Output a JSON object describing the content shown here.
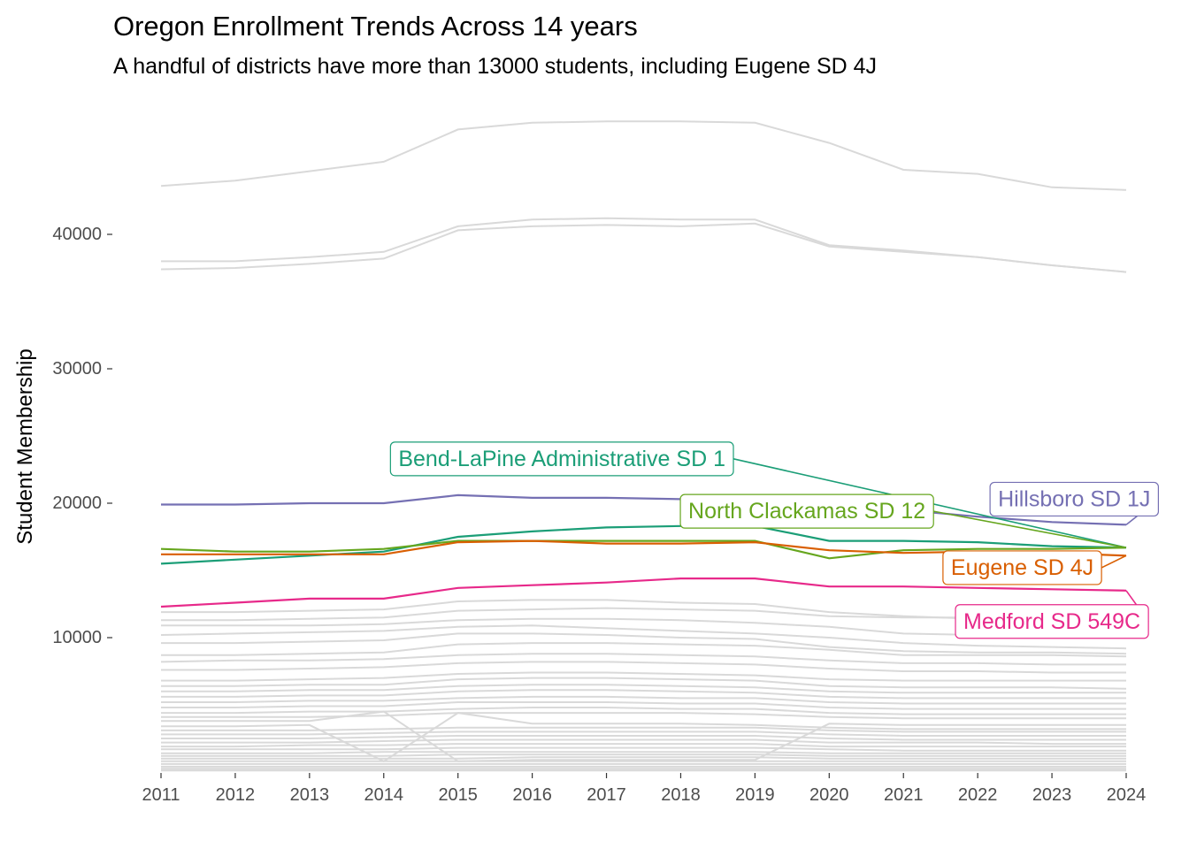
{
  "chart_data": {
    "type": "line",
    "title": "Oregon Enrollment Trends Across 14 years",
    "subtitle": "A handful of districts have more than 13000 students, including Eugene SD 4J",
    "xlabel": "",
    "ylabel": "Student Membership",
    "x": [
      2011,
      2012,
      2013,
      2014,
      2015,
      2016,
      2017,
      2018,
      2019,
      2020,
      2021,
      2022,
      2023,
      2024
    ],
    "xlim": [
      2011,
      2024
    ],
    "ylim": [
      0,
      46500
    ],
    "yticks": [
      10000,
      20000,
      30000,
      40000
    ],
    "grid": false,
    "legend": "none (direct labels)",
    "background_color": "#cccccc",
    "highlighted_series": [
      {
        "name": "Hillsboro SD 1J",
        "color": "#7570b3",
        "values": [
          19900,
          19900,
          20000,
          20000,
          20600,
          20400,
          20400,
          20300,
          20200,
          19700,
          19500,
          19000,
          18600,
          18400
        ],
        "label_year": 2023.3,
        "label_value": 20300
      },
      {
        "name": "Bend-LaPine Administrative SD 1",
        "color": "#1b9e77",
        "values": [
          15500,
          15800,
          16100,
          16400,
          17500,
          17900,
          18200,
          18300,
          18300,
          17200,
          17200,
          17100,
          16800,
          16700
        ],
        "label_year": 2016.4,
        "label_value": 23300
      },
      {
        "name": "North Clackamas SD 12",
        "color": "#66a61e",
        "values": [
          16600,
          16400,
          16400,
          16600,
          17200,
          17200,
          17200,
          17200,
          17200,
          15900,
          16500,
          16600,
          16600,
          16700
        ],
        "label_year": 2019.7,
        "label_value": 19400
      },
      {
        "name": "Eugene SD 4J",
        "color": "#d95f02",
        "values": [
          16200,
          16200,
          16200,
          16200,
          17100,
          17200,
          17000,
          17000,
          17100,
          16500,
          16300,
          16400,
          16300,
          16100
        ],
        "label_year": 2022.6,
        "label_value": 15200
      },
      {
        "name": "Medford SD 549C",
        "color": "#e7298a",
        "values": [
          12300,
          12600,
          12900,
          12900,
          13700,
          13900,
          14100,
          14400,
          14400,
          13800,
          13800,
          13700,
          13600,
          13500
        ],
        "label_year": 2023.0,
        "label_value": 11200
      }
    ],
    "background_series": [
      [
        43600,
        44000,
        44700,
        45400,
        47800,
        48300,
        48400,
        48400,
        48300,
        46800,
        44800,
        44500,
        43500,
        43300
      ],
      [
        38000,
        38000,
        38300,
        38700,
        40600,
        41100,
        41200,
        41100,
        41100,
        39200,
        38800,
        38300,
        37700,
        37200
      ],
      [
        37400,
        37500,
        37800,
        38200,
        40300,
        40600,
        40700,
        40600,
        40800,
        39100,
        38700,
        38300,
        37700,
        37200
      ],
      [
        11900,
        11900,
        12000,
        12100,
        12700,
        12800,
        12800,
        12600,
        12500,
        11900,
        11600,
        11400,
        11300,
        11300
      ],
      [
        11300,
        11300,
        11400,
        11500,
        12000,
        12100,
        12200,
        12100,
        12000,
        11600,
        11500,
        11500,
        11400,
        11300
      ],
      [
        10900,
        10900,
        10900,
        11000,
        11300,
        11400,
        11400,
        11300,
        11100,
        10800,
        10300,
        10200,
        10200,
        10200
      ],
      [
        10200,
        10300,
        10400,
        10500,
        10800,
        10900,
        10700,
        10500,
        10300,
        10000,
        9600,
        9400,
        9300,
        9200
      ],
      [
        9600,
        9600,
        9700,
        9800,
        10300,
        10300,
        10200,
        10000,
        9900,
        9300,
        9000,
        8900,
        8900,
        8800
      ],
      [
        8700,
        8700,
        8800,
        8900,
        9500,
        9600,
        9600,
        9500,
        9400,
        9100,
        8700,
        8700,
        8700,
        8600
      ],
      [
        8200,
        8300,
        8300,
        8400,
        8700,
        8800,
        8800,
        8700,
        8600,
        8300,
        8100,
        8100,
        8000,
        8000
      ],
      [
        7600,
        7600,
        7700,
        7800,
        8100,
        8200,
        8200,
        8100,
        8000,
        7700,
        7500,
        7500,
        7400,
        7400
      ],
      [
        6800,
        6800,
        6900,
        7000,
        7300,
        7400,
        7400,
        7300,
        7200,
        6900,
        6800,
        6800,
        6800,
        6800
      ],
      [
        6400,
        6400,
        6500,
        6500,
        6900,
        7000,
        7000,
        6900,
        6800,
        6400,
        6300,
        6300,
        6300,
        6200
      ],
      [
        6000,
        6000,
        6100,
        6100,
        6400,
        6500,
        6500,
        6400,
        6300,
        6000,
        5900,
        5900,
        5900,
        5900
      ],
      [
        5600,
        5600,
        5700,
        5700,
        6000,
        6100,
        6100,
        6000,
        5900,
        5600,
        5500,
        5500,
        5500,
        5500
      ],
      [
        5200,
        5200,
        5300,
        5300,
        5500,
        5600,
        5600,
        5500,
        5500,
        5200,
        5100,
        5100,
        5100,
        5100
      ],
      [
        4800,
        4800,
        4900,
        4900,
        5200,
        5200,
        5200,
        5100,
        5100,
        4800,
        4700,
        4700,
        4700,
        4700
      ],
      [
        4400,
        4400,
        4500,
        4500,
        4700,
        4800,
        4800,
        4700,
        4700,
        4400,
        4300,
        4300,
        4300,
        4300
      ],
      [
        4100,
        4100,
        4100,
        4200,
        4400,
        4400,
        4400,
        4400,
        4300,
        4100,
        4000,
        4000,
        4000,
        4000
      ],
      [
        3800,
        3800,
        3800,
        4500,
        800,
        900,
        900,
        900,
        900,
        3600,
        3500,
        3500,
        3500,
        3500
      ],
      [
        3400,
        3400,
        3500,
        800,
        4400,
        3600,
        3600,
        3600,
        3500,
        3300,
        3200,
        3200,
        3200,
        3200
      ],
      [
        3100,
        3100,
        3100,
        3200,
        3300,
        3300,
        3300,
        3300,
        3300,
        3100,
        3000,
        3000,
        3000,
        3000
      ],
      [
        2800,
        2800,
        2800,
        2900,
        3000,
        3000,
        3000,
        3000,
        3000,
        2800,
        2700,
        2700,
        2700,
        2700
      ],
      [
        2500,
        2500,
        2500,
        2600,
        2700,
        2700,
        2700,
        2700,
        2700,
        2500,
        2400,
        2400,
        2400,
        2400
      ],
      [
        2200,
        2200,
        2200,
        2300,
        2400,
        2400,
        2400,
        2400,
        2400,
        2200,
        2200,
        2200,
        2100,
        2100
      ],
      [
        1900,
        1900,
        2000,
        2000,
        2100,
        2100,
        2100,
        2100,
        2100,
        1900,
        1900,
        1900,
        1900,
        1900
      ],
      [
        1700,
        1700,
        1700,
        1700,
        1800,
        1800,
        1800,
        1800,
        1800,
        1700,
        1600,
        1600,
        1600,
        1600
      ],
      [
        1400,
        1400,
        1400,
        1500,
        1500,
        1500,
        1500,
        1500,
        1500,
        1400,
        1400,
        1400,
        1400,
        1400
      ],
      [
        1200,
        1200,
        1200,
        1200,
        1300,
        1300,
        1300,
        1300,
        1300,
        1200,
        1200,
        1200,
        1200,
        1200
      ],
      [
        1000,
        1000,
        1000,
        1000,
        1000,
        1100,
        1100,
        1100,
        1100,
        1000,
        1000,
        1000,
        1000,
        1000
      ],
      [
        800,
        800,
        800,
        800,
        800,
        800,
        800,
        800,
        800,
        800,
        800,
        800,
        800,
        800
      ],
      [
        600,
        600,
        600,
        600,
        600,
        600,
        600,
        600,
        600,
        600,
        600,
        600,
        600,
        600
      ],
      [
        400,
        400,
        400,
        400,
        400,
        400,
        400,
        400,
        400,
        400,
        400,
        400,
        400,
        400
      ],
      [
        250,
        250,
        250,
        250,
        250,
        250,
        250,
        250,
        250,
        250,
        250,
        250,
        250,
        250
      ],
      [
        120,
        120,
        120,
        120,
        120,
        120,
        120,
        120,
        120,
        120,
        120,
        120,
        120,
        120
      ]
    ]
  }
}
